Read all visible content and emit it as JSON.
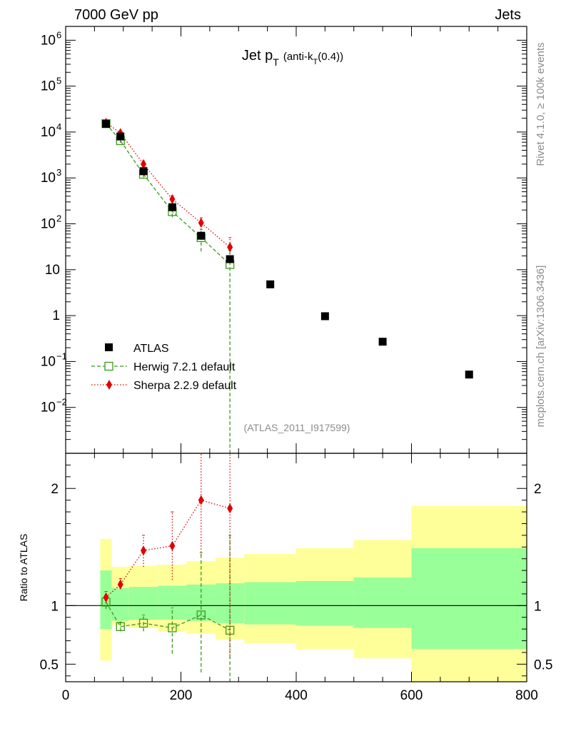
{
  "header": {
    "left_label": "7000 GeV pp",
    "right_label": "Jets"
  },
  "side_labels": {
    "rivet": "Rivet 4.1.0, ≥ 100k events",
    "mcplots": "mcplots.cern.ch [arXiv:1306.3436]"
  },
  "chart_data": [
    {
      "type": "scatter",
      "panel": "main",
      "title": "Jet p_T (anti-k_T(0.4))",
      "title_parts": {
        "main": "Jet p",
        "sub1": "T",
        "paren": "(anti-k",
        "sub2": "T",
        "tail": "(0.4))"
      },
      "analysis_label": "(ATLAS_2011_I917599)",
      "yscale": "log",
      "xlim": [
        0,
        800
      ],
      "ylim": [
        0.001,
        2000000
      ],
      "x_ticks": [
        0,
        200,
        400,
        600,
        800
      ],
      "y_tick_labels": [
        {
          "value": 1000000,
          "base": "10",
          "exp": "6"
        },
        {
          "value": 100000,
          "base": "10",
          "exp": "5"
        },
        {
          "value": 10000,
          "base": "10",
          "exp": "4"
        },
        {
          "value": 1000,
          "base": "10",
          "exp": "3"
        },
        {
          "value": 100,
          "base": "10",
          "exp": "2"
        },
        {
          "value": 10,
          "base": "10",
          "exp": ""
        },
        {
          "value": 1,
          "base": "1",
          "exp": ""
        },
        {
          "value": 0.1,
          "base": "10",
          "exp": "−1"
        },
        {
          "value": 0.01,
          "base": "10",
          "exp": "−2"
        }
      ],
      "legend_position": "bottom-left",
      "series": [
        {
          "name": "ATLAS",
          "color": "#000000",
          "marker": "filled-square",
          "points": [
            {
              "x": 70,
              "y": 15000
            },
            {
              "x": 95,
              "y": 8000
            },
            {
              "x": 135,
              "y": 1400
            },
            {
              "x": 185,
              "y": 230
            },
            {
              "x": 235,
              "y": 55
            },
            {
              "x": 285,
              "y": 17
            },
            {
              "x": 355,
              "y": 4.8
            },
            {
              "x": 450,
              "y": 0.97
            },
            {
              "x": 550,
              "y": 0.27
            },
            {
              "x": 700,
              "y": 0.052
            }
          ]
        },
        {
          "name": "Herwig 7.2.1 default",
          "color": "#3a9a1a",
          "marker": "open-square",
          "line": "dashed",
          "points": [
            {
              "x": 70,
              "y": 15300,
              "lo": 13500,
              "hi": 17000
            },
            {
              "x": 95,
              "y": 6500,
              "lo": 5800,
              "hi": 7300
            },
            {
              "x": 135,
              "y": 1200,
              "lo": 1020,
              "hi": 1400
            },
            {
              "x": 185,
              "y": 185,
              "lo": 140,
              "hi": 240
            },
            {
              "x": 235,
              "y": 50,
              "lo": 25,
              "hi": 75
            },
            {
              "x": 285,
              "y": 13,
              "lo": 0.0001,
              "hi": 26
            }
          ]
        },
        {
          "name": "Sherpa 2.2.9 default",
          "color": "#e00000",
          "marker": "filled-diamond",
          "line": "dotted",
          "points": [
            {
              "x": 70,
              "y": 16000,
              "lo": 14800,
              "hi": 17200
            },
            {
              "x": 95,
              "y": 9500,
              "lo": 8600,
              "hi": 10500
            },
            {
              "x": 135,
              "y": 2000,
              "lo": 1800,
              "hi": 2300
            },
            {
              "x": 185,
              "y": 345,
              "lo": 280,
              "hi": 410
            },
            {
              "x": 235,
              "y": 105,
              "lo": 75,
              "hi": 135
            },
            {
              "x": 285,
              "y": 31,
              "lo": 14,
              "hi": 50
            }
          ]
        }
      ]
    },
    {
      "type": "scatter",
      "panel": "ratio",
      "ylabel": "Ratio to ATLAS",
      "xlim": [
        0,
        800
      ],
      "ylim": [
        0.35,
        2.3
      ],
      "x_ticks": [
        0,
        200,
        400,
        600,
        800
      ],
      "y_ticks": [
        0.5,
        1,
        2
      ],
      "y_tick_labels": [
        "0.5",
        "1",
        "2"
      ],
      "bands": [
        {
          "x0": 60,
          "x1": 80,
          "green": [
            0.8,
            1.3
          ],
          "yellow": [
            0.53,
            1.57
          ]
        },
        {
          "x0": 80,
          "x1": 110,
          "green": [
            0.87,
            1.15
          ],
          "yellow": [
            0.83,
            1.33
          ]
        },
        {
          "x0": 110,
          "x1": 160,
          "green": [
            0.88,
            1.16
          ],
          "yellow": [
            0.81,
            1.34
          ]
        },
        {
          "x0": 160,
          "x1": 210,
          "green": [
            0.88,
            1.17
          ],
          "yellow": [
            0.78,
            1.35
          ]
        },
        {
          "x0": 210,
          "x1": 260,
          "green": [
            0.87,
            1.18
          ],
          "yellow": [
            0.76,
            1.38
          ]
        },
        {
          "x0": 260,
          "x1": 310,
          "green": [
            0.85,
            1.19
          ],
          "yellow": [
            0.71,
            1.41
          ]
        },
        {
          "x0": 310,
          "x1": 400,
          "green": [
            0.84,
            1.2
          ],
          "yellow": [
            0.68,
            1.44
          ]
        },
        {
          "x0": 400,
          "x1": 500,
          "green": [
            0.83,
            1.21
          ],
          "yellow": [
            0.63,
            1.49
          ]
        },
        {
          "x0": 500,
          "x1": 600,
          "green": [
            0.81,
            1.24
          ],
          "yellow": [
            0.55,
            1.56
          ]
        },
        {
          "x0": 600,
          "x1": 800,
          "green": [
            0.63,
            1.49
          ],
          "yellow": [
            0.33,
            1.85
          ]
        }
      ],
      "series": [
        {
          "name": "Herwig 7.2.1 default",
          "color": "#3a9a1a",
          "marker": "open-square",
          "line": "dashed",
          "points": [
            {
              "x": 70,
              "y": 1.03,
              "lo": 0.97,
              "hi": 1.09
            },
            {
              "x": 95,
              "y": 0.82,
              "lo": 0.78,
              "hi": 0.86
            },
            {
              "x": 135,
              "y": 0.85,
              "lo": 0.78,
              "hi": 0.92
            },
            {
              "x": 185,
              "y": 0.81,
              "lo": 0.59,
              "hi": 0.98
            },
            {
              "x": 235,
              "y": 0.92,
              "lo": 0.43,
              "hi": 1.45
            },
            {
              "x": 285,
              "y": 0.79,
              "lo": 0.3,
              "hi": 1.6
            }
          ]
        },
        {
          "name": "Sherpa 2.2.9 default",
          "color": "#e00000",
          "marker": "filled-diamond",
          "line": "dotted",
          "points": [
            {
              "x": 70,
              "y": 1.07,
              "lo": 1.02,
              "hi": 1.12
            },
            {
              "x": 95,
              "y": 1.18,
              "lo": 1.14,
              "hi": 1.23
            },
            {
              "x": 135,
              "y": 1.47,
              "lo": 1.33,
              "hi": 1.6
            },
            {
              "x": 185,
              "y": 1.51,
              "lo": 1.22,
              "hi": 1.8
            },
            {
              "x": 235,
              "y": 1.9,
              "lo": 1.43,
              "hi": 2.36
            },
            {
              "x": 285,
              "y": 1.83,
              "lo": 0.55,
              "hi": 2.36
            }
          ]
        }
      ]
    }
  ]
}
